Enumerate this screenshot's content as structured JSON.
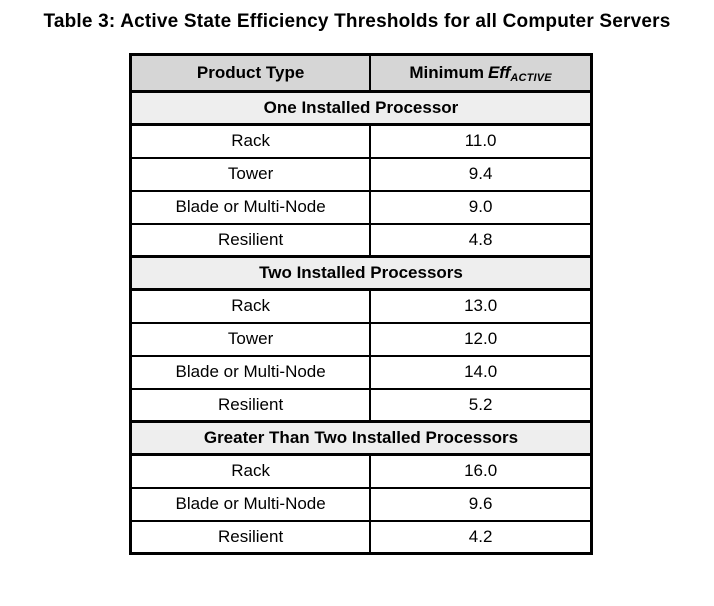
{
  "page": {
    "title": "Table 3: Active State Efficiency Thresholds for all Computer Servers"
  },
  "table": {
    "header": {
      "product_type": "Product Type",
      "min_eff_prefix": "Minimum",
      "min_eff_term": "Eff",
      "min_eff_subscript": "ACTIVE"
    },
    "sections": [
      {
        "header": "One Installed Processor",
        "rows": [
          {
            "product_type": "Rack",
            "min_eff": "11.0"
          },
          {
            "product_type": "Tower",
            "min_eff": "9.4"
          },
          {
            "product_type": "Blade or Multi-Node",
            "min_eff": "9.0"
          },
          {
            "product_type": "Resilient",
            "min_eff": "4.8"
          }
        ]
      },
      {
        "header": "Two Installed Processors",
        "rows": [
          {
            "product_type": "Rack",
            "min_eff": "13.0"
          },
          {
            "product_type": "Tower",
            "min_eff": "12.0"
          },
          {
            "product_type": "Blade or Multi-Node",
            "min_eff": "14.0"
          },
          {
            "product_type": "Resilient",
            "min_eff": "5.2"
          }
        ]
      },
      {
        "header": "Greater Than Two Installed Processors",
        "rows": [
          {
            "product_type": "Rack",
            "min_eff": "16.0"
          },
          {
            "product_type": "Blade or Multi-Node",
            "min_eff": "9.6"
          },
          {
            "product_type": "Resilient",
            "min_eff": "4.2"
          }
        ]
      }
    ]
  },
  "colors": {
    "header_bg": "#d6d6d6",
    "section_bg": "#eeeeee",
    "border": "#000000",
    "page_bg": "#ffffff",
    "text": "#000000"
  }
}
